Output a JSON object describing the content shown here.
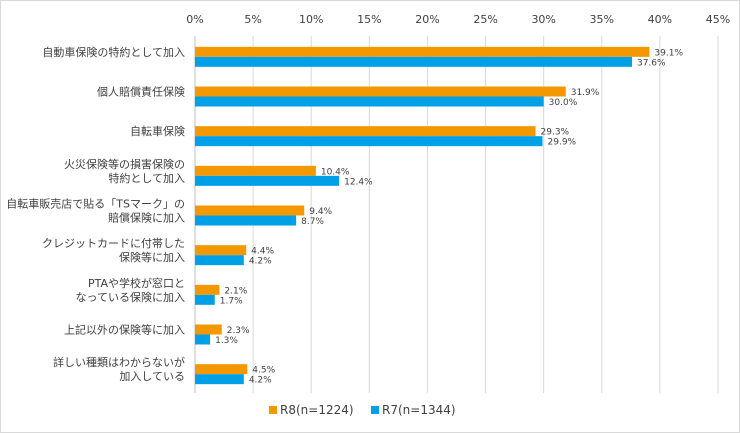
{
  "chart_data": {
    "type": "bar",
    "orientation": "horizontal",
    "categories": [
      "自動車保険の特約として加入",
      "個人賠償責任保険",
      "自転車保険",
      "火災保険等の損害保険の\n特約として加入",
      "自転車販売店で貼る「TSマーク」の\n賠償保険に加入",
      "クレジットカードに付帯した\n保険等に加入",
      "PTAや学校が窓口と\nなっている保険に加入",
      "上記以外の保険等に加入",
      "詳しい種類はわからないが\n加入している"
    ],
    "series": [
      {
        "name": "R8(n=1224)",
        "color": "#f39800",
        "values": [
          39.1,
          31.9,
          29.3,
          10.4,
          9.4,
          4.4,
          2.1,
          2.3,
          4.5
        ]
      },
      {
        "name": "R7(n=1344)",
        "color": "#00a0e9",
        "values": [
          37.6,
          30.0,
          29.9,
          12.4,
          8.7,
          4.2,
          1.7,
          1.3,
          4.2
        ]
      }
    ],
    "xlim": [
      0,
      45
    ],
    "xticks": [
      "0%",
      "5%",
      "10%",
      "15%",
      "20%",
      "25%",
      "30%",
      "35%",
      "40%",
      "45%"
    ],
    "tick_step": 5,
    "value_suffix": "%",
    "grid": true,
    "legend_position": "bottom"
  }
}
